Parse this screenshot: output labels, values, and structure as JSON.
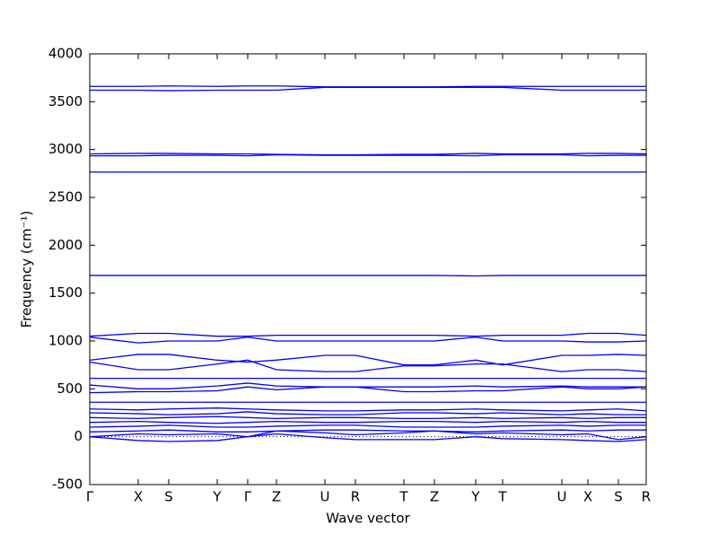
{
  "chart_data": {
    "type": "line",
    "xlabel": "Wave vector",
    "ylabel": "Frequency (cm⁻¹)",
    "x": [
      0,
      54,
      88,
      142,
      176,
      208,
      262,
      296,
      350,
      384,
      430,
      460,
      526,
      555,
      589,
      620
    ],
    "xlim": [
      0,
      620
    ],
    "xticks": [
      {
        "value": 0,
        "label": "Γ"
      },
      {
        "value": 54,
        "label": "X"
      },
      {
        "value": 88,
        "label": "S"
      },
      {
        "value": 142,
        "label": "Y"
      },
      {
        "value": 176,
        "label": "Γ"
      },
      {
        "value": 208,
        "label": "Z"
      },
      {
        "value": 262,
        "label": "U"
      },
      {
        "value": 296,
        "label": "R"
      },
      {
        "value": 350,
        "label": "T"
      },
      {
        "value": 384,
        "label": "Z"
      },
      {
        "value": 430,
        "label": "Y"
      },
      {
        "value": 460,
        "label": "T"
      },
      {
        "value": 526,
        "label": "U"
      },
      {
        "value": 555,
        "label": "X"
      },
      {
        "value": 589,
        "label": "S"
      },
      {
        "value": 620,
        "label": "R"
      }
    ],
    "ylim": [
      -500,
      4000
    ],
    "yticks": [
      -500,
      0,
      500,
      1000,
      1500,
      2000,
      2500,
      3000,
      3500,
      4000
    ],
    "zero_line": true,
    "series": [
      {
        "color": "#0000ff",
        "values": [
          3660,
          3660,
          3665,
          3660,
          3665,
          3665,
          3655,
          3655,
          3655,
          3655,
          3660,
          3660,
          3660,
          3660,
          3660,
          3660
        ]
      },
      {
        "color": "#0000ff",
        "values": [
          3620,
          3620,
          3615,
          3620,
          3620,
          3620,
          3650,
          3650,
          3650,
          3650,
          3650,
          3650,
          3620,
          3620,
          3620,
          3620
        ]
      },
      {
        "color": "#0000ff",
        "values": [
          2955,
          2960,
          2960,
          2955,
          2955,
          2950,
          2945,
          2945,
          2950,
          2950,
          2960,
          2955,
          2955,
          2960,
          2960,
          2955
        ]
      },
      {
        "color": "#0000ff",
        "values": [
          2935,
          2935,
          2940,
          2940,
          2935,
          2945,
          2940,
          2940,
          2940,
          2940,
          2935,
          2945,
          2945,
          2935,
          2940,
          2940
        ]
      },
      {
        "color": "#0000ff",
        "values": [
          2765,
          2765,
          2765,
          2765,
          2765,
          2765,
          2765,
          2765,
          2765,
          2765,
          2765,
          2765,
          2765,
          2765,
          2765,
          2765
        ]
      },
      {
        "color": "#0000ff",
        "values": [
          1685,
          1685,
          1685,
          1685,
          1685,
          1685,
          1685,
          1685,
          1685,
          1685,
          1680,
          1685,
          1685,
          1685,
          1685,
          1685
        ]
      },
      {
        "color": "#0000ff",
        "values": [
          1050,
          1080,
          1080,
          1050,
          1050,
          1060,
          1060,
          1060,
          1060,
          1060,
          1050,
          1060,
          1060,
          1080,
          1080,
          1060
        ]
      },
      {
        "color": "#0000ff",
        "values": [
          1040,
          980,
          1000,
          1000,
          1040,
          1000,
          1000,
          1000,
          1000,
          1000,
          1040,
          1000,
          1000,
          990,
          990,
          1000
        ]
      },
      {
        "color": "#0000ff",
        "values": [
          800,
          860,
          860,
          800,
          780,
          800,
          850,
          850,
          750,
          750,
          800,
          750,
          850,
          850,
          860,
          850
        ]
      },
      {
        "color": "#0000ff",
        "values": [
          780,
          700,
          700,
          760,
          800,
          700,
          680,
          680,
          740,
          740,
          760,
          760,
          680,
          700,
          700,
          680
        ]
      },
      {
        "color": "#0000ff",
        "values": [
          610,
          610,
          610,
          610,
          610,
          610,
          610,
          610,
          610,
          610,
          610,
          610,
          610,
          610,
          610,
          610
        ]
      },
      {
        "color": "#0000ff",
        "values": [
          540,
          500,
          500,
          530,
          560,
          530,
          520,
          520,
          520,
          520,
          530,
          520,
          530,
          520,
          520,
          520
        ]
      },
      {
        "color": "#0000ff",
        "values": [
          460,
          470,
          470,
          480,
          520,
          490,
          520,
          520,
          470,
          470,
          480,
          480,
          520,
          500,
          500,
          520
        ]
      },
      {
        "color": "#0000ff",
        "values": [
          360,
          360,
          360,
          360,
          360,
          360,
          360,
          360,
          360,
          360,
          360,
          360,
          360,
          360,
          360,
          360
        ]
      },
      {
        "color": "#0000ff",
        "values": [
          290,
          280,
          290,
          300,
          290,
          280,
          270,
          270,
          280,
          280,
          290,
          280,
          270,
          280,
          290,
          270
        ]
      },
      {
        "color": "#0000ff",
        "values": [
          250,
          240,
          230,
          240,
          260,
          240,
          230,
          230,
          250,
          250,
          240,
          250,
          230,
          240,
          230,
          230
        ]
      },
      {
        "color": "#0000ff",
        "values": [
          200,
          190,
          200,
          210,
          200,
          190,
          200,
          200,
          190,
          190,
          200,
          190,
          200,
          190,
          200,
          200
        ]
      },
      {
        "color": "#0000ff",
        "values": [
          150,
          160,
          150,
          140,
          150,
          160,
          150,
          150,
          160,
          160,
          150,
          160,
          150,
          160,
          150,
          150
        ]
      },
      {
        "color": "#0000ff",
        "values": [
          100,
          110,
          120,
          100,
          100,
          110,
          120,
          120,
          100,
          100,
          100,
          110,
          120,
          110,
          120,
          120
        ]
      },
      {
        "color": "#0000ff",
        "values": [
          50,
          60,
          70,
          50,
          50,
          60,
          70,
          70,
          60,
          60,
          50,
          60,
          70,
          60,
          70,
          70
        ]
      },
      {
        "color": "#0000ff",
        "values": [
          0,
          -40,
          -50,
          -40,
          0,
          30,
          -10,
          -30,
          -30,
          -30,
          0,
          -20,
          -30,
          -40,
          -50,
          -30
        ]
      },
      {
        "color": "#0000ff",
        "values": [
          0,
          30,
          20,
          30,
          0,
          60,
          40,
          20,
          40,
          60,
          30,
          40,
          20,
          30,
          -30,
          0
        ]
      }
    ]
  }
}
